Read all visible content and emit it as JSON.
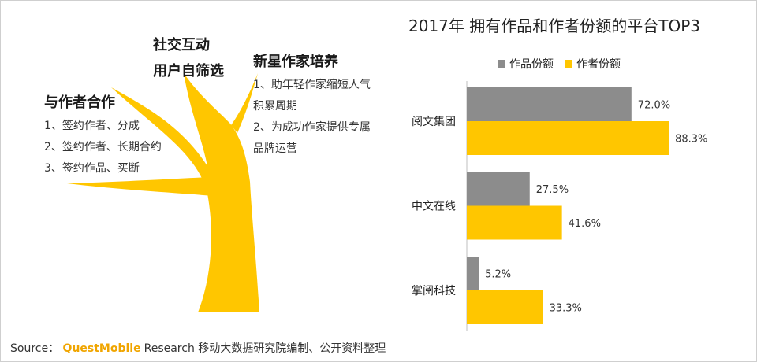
{
  "left_panel": {
    "social": {
      "lines": [
        "社交互动",
        "用户自筛选"
      ]
    },
    "author_coop": {
      "title": "与作者合作",
      "items": [
        "1、签约作者、分成",
        "2、签约作者、长期合约",
        "3、签约作品、买断"
      ]
    },
    "new_star": {
      "title": "新星作家培养",
      "items": [
        "1、助年轻作家缩短人气",
        "积累周期",
        "2、为成功作家提供专属",
        "品牌运营"
      ]
    }
  },
  "chart_data": {
    "type": "bar",
    "orientation": "horizontal",
    "title": "2017年 拥有作品和作者份额的平台TOP3",
    "categories": [
      "阅文集团",
      "中文在线",
      "掌阅科技"
    ],
    "series": [
      {
        "name": "作品份额",
        "values": [
          72.0,
          27.5,
          5.2
        ],
        "labels": [
          "72.0%",
          "27.5%",
          "5.2%"
        ],
        "color": "#8c8c8c"
      },
      {
        "name": "作者份额",
        "values": [
          88.3,
          41.6,
          33.3
        ],
        "labels": [
          "88.3%",
          "41.6%",
          "33.3%"
        ],
        "color": "#ffc600"
      }
    ],
    "xlim": [
      0,
      100
    ],
    "legend_position": "top",
    "grid": false
  },
  "footer": {
    "source_label": "Source：",
    "brand": "QuestMobile",
    "text": "Research 移动大数据研究院编制、公开资料整理"
  },
  "colors": {
    "tree": "#ffc600",
    "axis": "#bfbfbf"
  }
}
